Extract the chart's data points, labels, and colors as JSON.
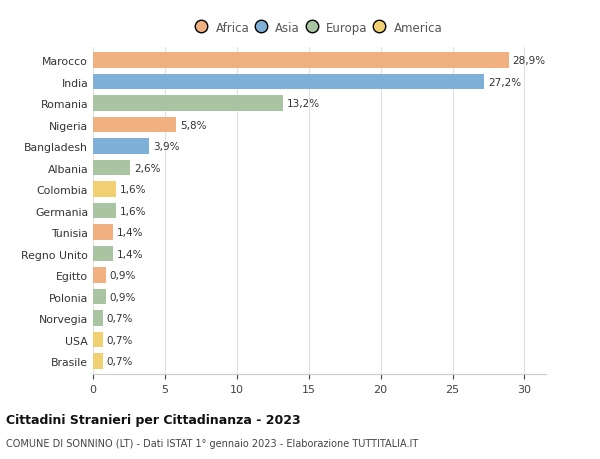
{
  "categories": [
    "Marocco",
    "India",
    "Romania",
    "Nigeria",
    "Bangladesh",
    "Albania",
    "Colombia",
    "Germania",
    "Tunisia",
    "Regno Unito",
    "Egitto",
    "Polonia",
    "Norvegia",
    "USA",
    "Brasile"
  ],
  "values": [
    28.9,
    27.2,
    13.2,
    5.8,
    3.9,
    2.6,
    1.6,
    1.6,
    1.4,
    1.4,
    0.9,
    0.9,
    0.7,
    0.7,
    0.7
  ],
  "labels": [
    "28,9%",
    "27,2%",
    "13,2%",
    "5,8%",
    "3,9%",
    "2,6%",
    "1,6%",
    "1,6%",
    "1,4%",
    "1,4%",
    "0,9%",
    "0,9%",
    "0,7%",
    "0,7%",
    "0,7%"
  ],
  "continents": [
    "Africa",
    "Asia",
    "Europa",
    "Africa",
    "Asia",
    "Europa",
    "America",
    "Europa",
    "Africa",
    "Europa",
    "Africa",
    "Europa",
    "Europa",
    "America",
    "America"
  ],
  "colors": {
    "Africa": "#F0B080",
    "Asia": "#7EB0D8",
    "Europa": "#A8C4A0",
    "America": "#F0D070"
  },
  "title": "Cittadini Stranieri per Cittadinanza - 2023",
  "subtitle": "COMUNE DI SONNINO (LT) - Dati ISTAT 1° gennaio 2023 - Elaborazione TUTTITALIA.IT",
  "xlim": [
    0,
    31.5
  ],
  "xticks": [
    0,
    5,
    10,
    15,
    20,
    25,
    30
  ],
  "background_color": "#ffffff",
  "grid_color": "#e0e0e0",
  "bar_height": 0.72
}
